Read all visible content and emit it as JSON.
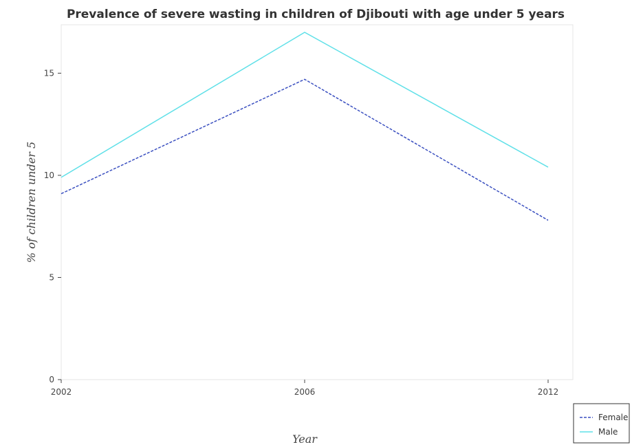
{
  "chart_data": {
    "type": "line",
    "title": "Prevalence of severe wasting in children of Djibouti with age under 5 years",
    "xlabel": "Year",
    "ylabel": "% of children under 5",
    "categories": [
      "2002",
      "2006",
      "2012"
    ],
    "ylim": [
      0,
      17
    ],
    "yticks": [
      0,
      5,
      10,
      15
    ],
    "grid": false,
    "legend_position": "bottom-right",
    "series": [
      {
        "name": "Female",
        "values": [
          9.1,
          14.7,
          7.8
        ],
        "color": "#3a4fc0"
      },
      {
        "name": "Male",
        "values": [
          9.9,
          17.0,
          10.4
        ],
        "color": "#5fe0e8"
      }
    ]
  }
}
